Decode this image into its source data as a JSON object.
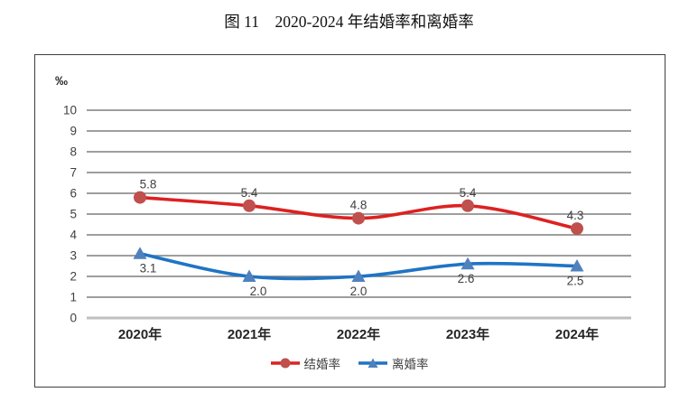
{
  "title": "图 11    2020-2024 年结婚率和离婚率",
  "chart_data": {
    "type": "line",
    "title": "图 11    2020-2024 年结婚率和离婚率",
    "unit_label": "‰",
    "categories": [
      "2020年",
      "2021年",
      "2022年",
      "2023年",
      "2024年"
    ],
    "series": [
      {
        "name": "结婚率",
        "values": [
          5.8,
          5.4,
          4.8,
          5.4,
          4.3
        ],
        "line_color": "#dd2121",
        "marker_color": "#c0504d",
        "marker": "circle",
        "label_position": "above",
        "label_dx": [
          9,
          0,
          0,
          0,
          -2
        ]
      },
      {
        "name": "离婚率",
        "values": [
          3.1,
          2.0,
          2.0,
          2.6,
          2.5
        ],
        "line_color": "#1f74c4",
        "marker_color": "#4f81bd",
        "marker": "triangle",
        "label_position": "below",
        "label_dx": [
          9,
          10,
          0,
          -2,
          -2
        ]
      }
    ],
    "ylim": [
      0,
      10
    ],
    "ytick_step": 1,
    "grid": "horizontal",
    "legend_position": "bottom",
    "grid_color": "#7f7f7f",
    "axis_color": "#bfbfbf",
    "tick_label_color": "#404040",
    "data_label_color": "#404040",
    "xlabel_color": "#262626",
    "xlabel": "",
    "ylabel": "‰"
  }
}
